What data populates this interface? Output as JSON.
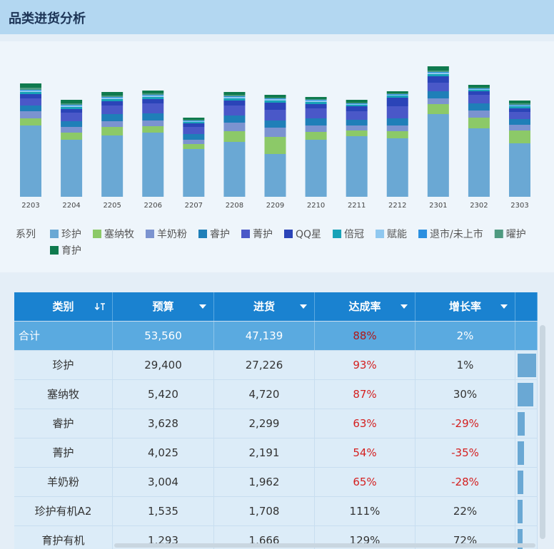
{
  "header": {
    "title": "品类进货分析"
  },
  "chart_data": {
    "type": "bar",
    "stacked": true,
    "legend_title": "系列",
    "categories": [
      "2203",
      "2204",
      "2205",
      "2206",
      "2207",
      "2208",
      "2209",
      "2210",
      "2211",
      "2212",
      "2301",
      "2302",
      "2303"
    ],
    "series": [
      {
        "name": "珍护",
        "color": "#6aa8d4",
        "values": [
          100,
          80,
          86,
          90,
          67,
          77,
          60,
          80,
          85,
          82,
          116,
          96,
          75
        ]
      },
      {
        "name": "塞纳牧",
        "color": "#8cc968",
        "values": [
          10,
          10,
          12,
          9,
          7,
          15,
          24,
          11,
          8,
          10,
          14,
          15,
          18
        ]
      },
      {
        "name": "羊奶粉",
        "color": "#7b93d0",
        "values": [
          10,
          8,
          8,
          8,
          6,
          12,
          13,
          9,
          7,
          8,
          8,
          10,
          8
        ]
      },
      {
        "name": "睿护",
        "color": "#1f7fb8",
        "values": [
          8,
          8,
          10,
          10,
          8,
          10,
          10,
          10,
          8,
          10,
          10,
          10,
          8
        ]
      },
      {
        "name": "菁护",
        "color": "#4a58c8",
        "values": [
          10,
          12,
          12,
          14,
          10,
          14,
          15,
          14,
          12,
          17,
          12,
          12,
          10
        ]
      },
      {
        "name": "QQ星",
        "color": "#2b44b8",
        "values": [
          6,
          5,
          6,
          6,
          5,
          7,
          10,
          6,
          7,
          12,
          9,
          5,
          5
        ]
      },
      {
        "name": "倍冠",
        "color": "#17a2b8",
        "values": [
          3,
          3,
          3,
          3,
          2,
          3,
          3,
          3,
          2,
          3,
          3,
          2,
          3
        ]
      },
      {
        "name": "赋能",
        "color": "#8fc8f0",
        "values": [
          2,
          2,
          2,
          2,
          1,
          2,
          2,
          2,
          1,
          1,
          2,
          1,
          1
        ]
      },
      {
        "name": "退市/未上市",
        "color": "#2a8fe0",
        "values": [
          1,
          1,
          1,
          1,
          1,
          1,
          1,
          1,
          1,
          1,
          1,
          1,
          1
        ]
      },
      {
        "name": "曜护",
        "color": "#4e9a80",
        "values": [
          3,
          2,
          2,
          2,
          1,
          2,
          1,
          1,
          1,
          1,
          2,
          1,
          2
        ]
      },
      {
        "name": "育护",
        "color": "#0f7a4e",
        "values": [
          6,
          5,
          5,
          4,
          3,
          4,
          4,
          3,
          4,
          3,
          6,
          4,
          4
        ]
      }
    ]
  },
  "table": {
    "columns": [
      "类别",
      "预算",
      "进货",
      "达成率",
      "增长率"
    ],
    "rows": [
      [
        "合计",
        "53,560",
        "47,139",
        "88%",
        "2%"
      ],
      [
        "珍护",
        "29,400",
        "27,226",
        "93%",
        "1%"
      ],
      [
        "塞纳牧",
        "5,420",
        "4,720",
        "87%",
        "30%"
      ],
      [
        "睿护",
        "3,628",
        "2,299",
        "63%",
        "-29%"
      ],
      [
        "菁护",
        "4,025",
        "2,191",
        "54%",
        "-35%"
      ],
      [
        "羊奶粉",
        "3,004",
        "1,962",
        "65%",
        "-28%"
      ],
      [
        "珍护有机A2",
        "1,535",
        "1,708",
        "111%",
        "22%"
      ],
      [
        "育护有机",
        "1,293",
        "1,666",
        "129%",
        "72%"
      ]
    ]
  }
}
